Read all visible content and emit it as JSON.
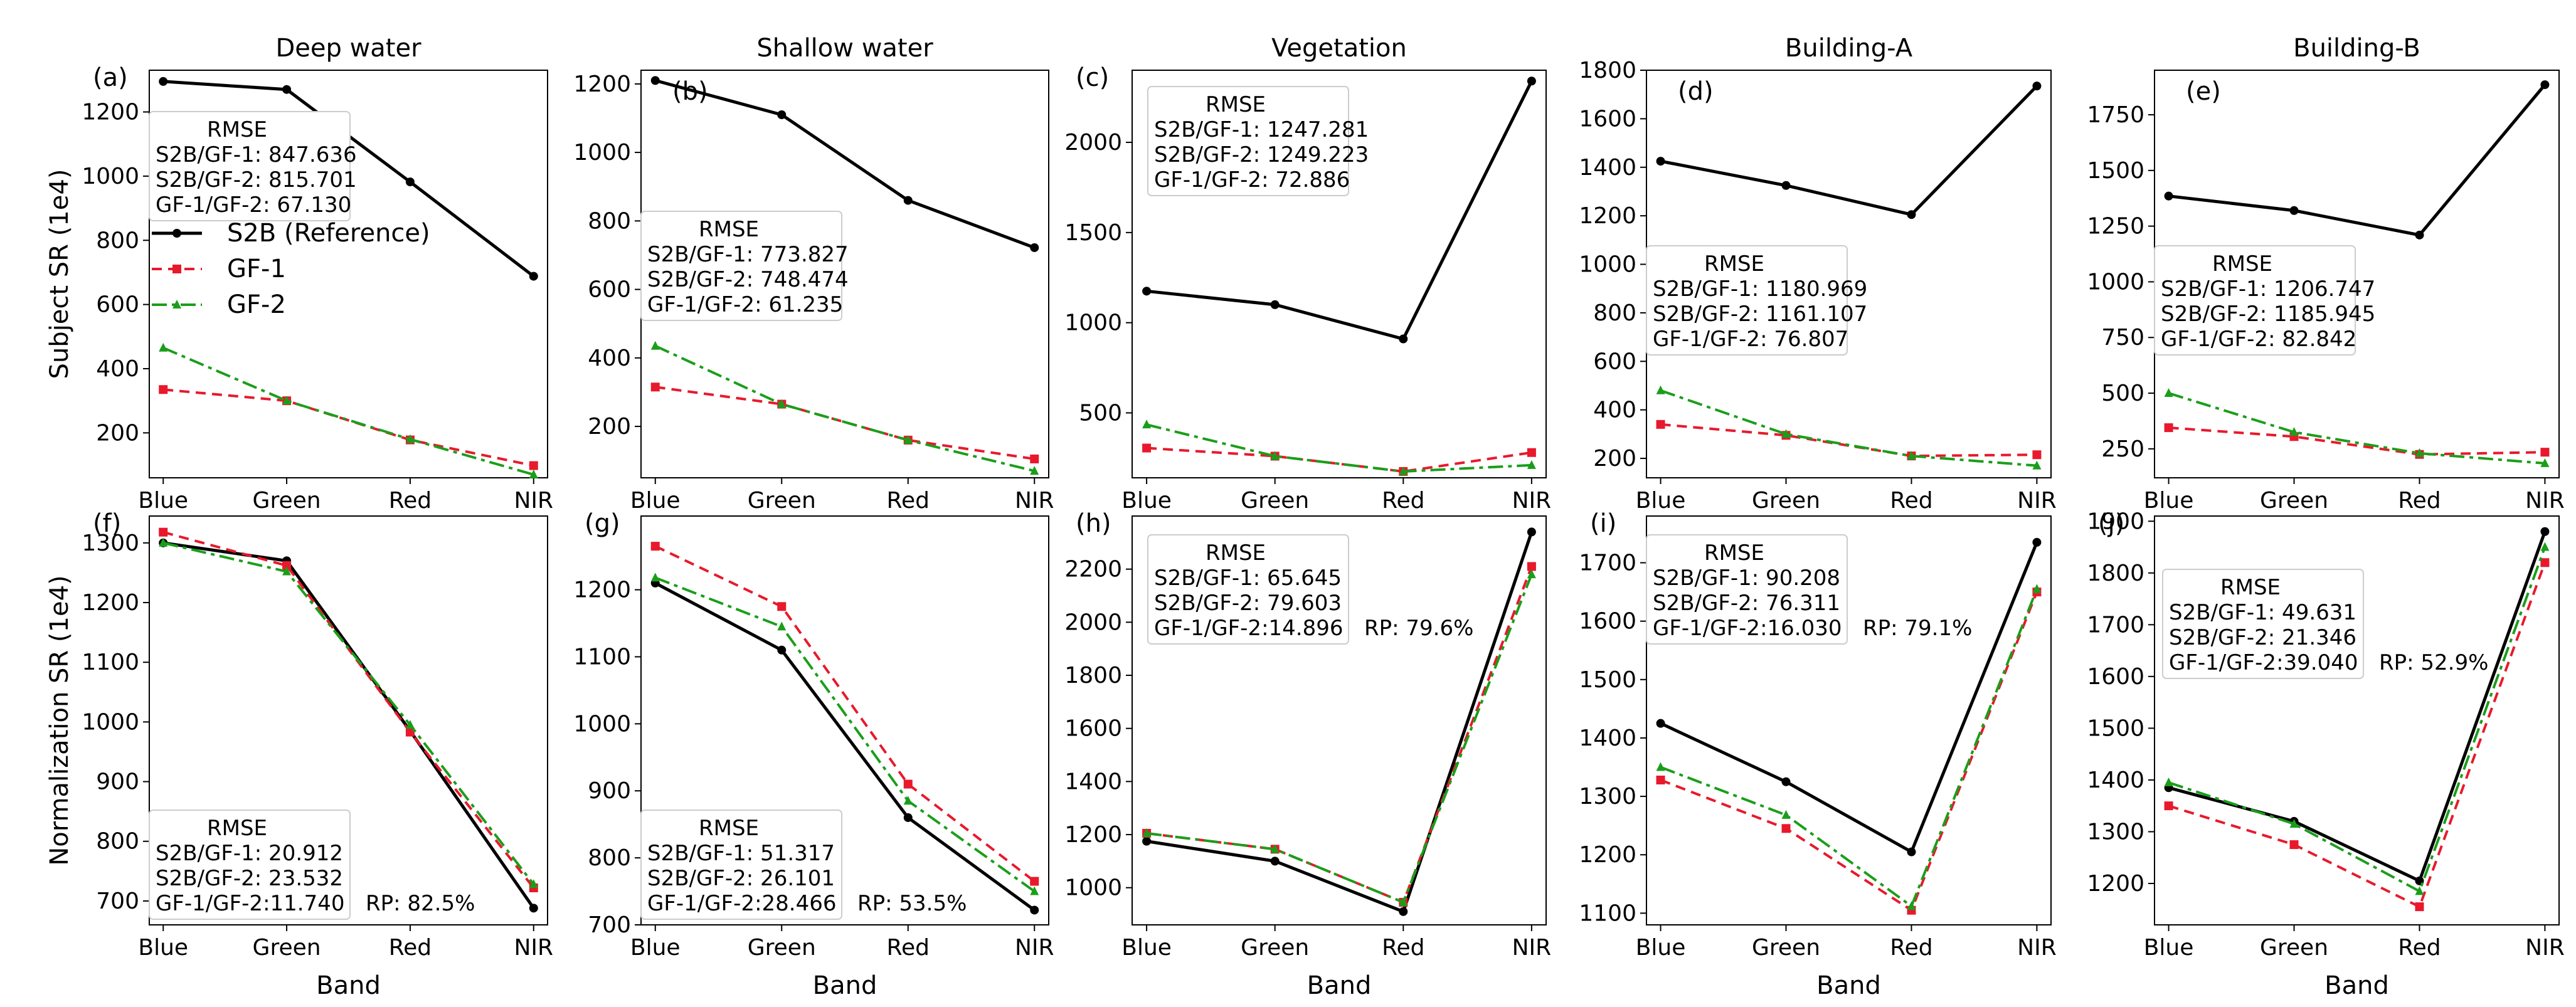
{
  "figure": {
    "col_titles": [
      "Deep water",
      "Shallow water",
      "Vegetation",
      "Building-A",
      "Building-B"
    ],
    "row_ylabels": [
      "Subject SR (1e4)",
      "Normalization SR (1e4)"
    ],
    "xlabel": "Band"
  },
  "legend": [
    {
      "name": "S2B (Reference)",
      "color": "#000000"
    },
    {
      "name": "GF-1",
      "color": "#e8192c"
    },
    {
      "name": "GF-2",
      "color": "#1a9e1a"
    }
  ],
  "colors": {
    "s2b": "#000000",
    "gf1": "#e8192c",
    "gf2": "#1a9e1a"
  },
  "chart_data": [
    {
      "id": "a",
      "label": "(a)",
      "type": "line",
      "categories": [
        "Blue",
        "Green",
        "Red",
        "NIR"
      ],
      "ylim": [
        60,
        1330
      ],
      "yticks": [
        200,
        400,
        600,
        800,
        1000,
        1200
      ],
      "series": [
        {
          "name": "S2B (Reference)",
          "values": [
            1295,
            1270,
            982,
            688
          ]
        },
        {
          "name": "GF-1",
          "values": [
            335,
            300,
            178,
            98
          ]
        },
        {
          "name": "GF-2",
          "values": [
            465,
            300,
            180,
            70
          ]
        }
      ],
      "rmse_title": "RMSE",
      "rmse_lines": [
        "S2B/GF-1: 847.636",
        "S2B/GF-2: 815.701",
        "GF-1/GF-2:  67.130"
      ],
      "rp": ""
    },
    {
      "id": "b",
      "label": "(b)",
      "type": "line",
      "categories": [
        "Blue",
        "Green",
        "Red",
        "NIR"
      ],
      "ylim": [
        50,
        1240
      ],
      "yticks": [
        200,
        400,
        600,
        800,
        1000,
        1200
      ],
      "series": [
        {
          "name": "S2B (Reference)",
          "values": [
            1210,
            1110,
            860,
            722
          ]
        },
        {
          "name": "GF-1",
          "values": [
            315,
            265,
            160,
            105
          ]
        },
        {
          "name": "GF-2",
          "values": [
            435,
            265,
            160,
            70
          ]
        }
      ],
      "rmse_title": "RMSE",
      "rmse_lines": [
        "S2B/GF-1: 773.827",
        "S2B/GF-2: 748.474",
        "GF-1/GF-2:  61.235"
      ],
      "rp": ""
    },
    {
      "id": "c",
      "label": "(c)",
      "type": "line",
      "categories": [
        "Blue",
        "Green",
        "Red",
        "NIR"
      ],
      "ylim": [
        140,
        2400
      ],
      "yticks": [
        500,
        1000,
        1500,
        2000
      ],
      "series": [
        {
          "name": "S2B (Reference)",
          "values": [
            1175,
            1100,
            910,
            2340
          ]
        },
        {
          "name": "GF-1",
          "values": [
            305,
            260,
            175,
            280
          ]
        },
        {
          "name": "GF-2",
          "values": [
            435,
            260,
            175,
            210
          ]
        }
      ],
      "rmse_title": "RMSE",
      "rmse_lines": [
        "S2B/GF-1: 1247.281",
        "S2B/GF-2: 1249.223",
        "GF-1/GF-2:    72.886"
      ],
      "rp": ""
    },
    {
      "id": "d",
      "label": "(d)",
      "type": "line",
      "categories": [
        "Blue",
        "Green",
        "Red",
        "NIR"
      ],
      "ylim": [
        120,
        1800
      ],
      "yticks": [
        200,
        400,
        600,
        800,
        1000,
        1200,
        1400,
        1600,
        1800
      ],
      "series": [
        {
          "name": "S2B (Reference)",
          "values": [
            1425,
            1325,
            1205,
            1735
          ]
        },
        {
          "name": "GF-1",
          "values": [
            340,
            295,
            210,
            215
          ]
        },
        {
          "name": "GF-2",
          "values": [
            480,
            300,
            210,
            170
          ]
        }
      ],
      "rmse_title": "RMSE",
      "rmse_lines": [
        "S2B/GF-1: 1180.969",
        "S2B/GF-2: 1161.107",
        "GF-1/GF-2:    76.807"
      ],
      "rp": ""
    },
    {
      "id": "e",
      "label": "(e)",
      "type": "line",
      "categories": [
        "Blue",
        "Green",
        "Red",
        "NIR"
      ],
      "ylim": [
        120,
        1950
      ],
      "yticks": [
        250,
        500,
        750,
        1000,
        1250,
        1500,
        1750
      ],
      "series": [
        {
          "name": "S2B (Reference)",
          "values": [
            1385,
            1320,
            1210,
            1885
          ]
        },
        {
          "name": "GF-1",
          "values": [
            345,
            305,
            225,
            235
          ]
        },
        {
          "name": "GF-2",
          "values": [
            500,
            325,
            230,
            185
          ]
        }
      ],
      "rmse_title": "RMSE",
      "rmse_lines": [
        "S2B/GF-1: 1206.747",
        "S2B/GF-2: 1185.945",
        "GF-1/GF-2:    82.842"
      ],
      "rp": ""
    },
    {
      "id": "f",
      "label": "(f)",
      "type": "line",
      "categories": [
        "Blue",
        "Green",
        "Red",
        "NIR"
      ],
      "ylim": [
        660,
        1345
      ],
      "yticks": [
        700,
        800,
        900,
        1000,
        1100,
        1200,
        1300
      ],
      "series": [
        {
          "name": "S2B (Reference)",
          "values": [
            1300,
            1270,
            985,
            688
          ]
        },
        {
          "name": "GF-1",
          "values": [
            1318,
            1262,
            983,
            722
          ]
        },
        {
          "name": "GF-2",
          "values": [
            1300,
            1252,
            995,
            728
          ]
        }
      ],
      "rmse_title": "RMSE",
      "rmse_lines": [
        "S2B/GF-1: 20.912",
        "S2B/GF-2: 23.532",
        "GF-1/GF-2:11.740"
      ],
      "rp": "RP: 82.5%"
    },
    {
      "id": "g",
      "label": "(g)",
      "type": "line",
      "categories": [
        "Blue",
        "Green",
        "Red",
        "NIR"
      ],
      "ylim": [
        700,
        1310
      ],
      "yticks": [
        700,
        800,
        900,
        1000,
        1100,
        1200
      ],
      "series": [
        {
          "name": "S2B (Reference)",
          "values": [
            1210,
            1110,
            860,
            722
          ]
        },
        {
          "name": "GF-1",
          "values": [
            1265,
            1175,
            910,
            765
          ]
        },
        {
          "name": "GF-2",
          "values": [
            1218,
            1145,
            885,
            750
          ]
        }
      ],
      "rmse_title": "RMSE",
      "rmse_lines": [
        "S2B/GF-1: 51.317",
        "S2B/GF-2: 26.101",
        "GF-1/GF-2:28.466"
      ],
      "rp": "RP: 53.5%"
    },
    {
      "id": "h",
      "label": "(h)",
      "type": "line",
      "categories": [
        "Blue",
        "Green",
        "Red",
        "NIR"
      ],
      "ylim": [
        860,
        2400
      ],
      "yticks": [
        1000,
        1200,
        1400,
        1600,
        1800,
        2000,
        2200
      ],
      "series": [
        {
          "name": "S2B (Reference)",
          "values": [
            1175,
            1100,
            910,
            2340
          ]
        },
        {
          "name": "GF-1",
          "values": [
            1205,
            1145,
            945,
            2210
          ]
        },
        {
          "name": "GF-2",
          "values": [
            1205,
            1145,
            945,
            2180
          ]
        }
      ],
      "rmse_title": "RMSE",
      "rmse_lines": [
        "S2B/GF-1: 65.645",
        "S2B/GF-2: 79.603",
        "GF-1/GF-2:14.896"
      ],
      "rp": "RP: 79.6%"
    },
    {
      "id": "i",
      "label": "(i)",
      "type": "line",
      "categories": [
        "Blue",
        "Green",
        "Red",
        "NIR"
      ],
      "ylim": [
        1080,
        1780
      ],
      "yticks": [
        1100,
        1200,
        1300,
        1400,
        1500,
        1600,
        1700
      ],
      "series": [
        {
          "name": "S2B (Reference)",
          "values": [
            1425,
            1325,
            1205,
            1735
          ]
        },
        {
          "name": "GF-1",
          "values": [
            1328,
            1245,
            1105,
            1650
          ]
        },
        {
          "name": "GF-2",
          "values": [
            1350,
            1268,
            1112,
            1655
          ]
        }
      ],
      "rmse_title": "RMSE",
      "rmse_lines": [
        "S2B/GF-1: 90.208",
        "S2B/GF-2: 76.311",
        "GF-1/GF-2:16.030"
      ],
      "rp": "RP: 79.1%"
    },
    {
      "id": "j",
      "label": "(j)",
      "type": "line",
      "categories": [
        "Blue",
        "Green",
        "Red",
        "NIR"
      ],
      "ylim": [
        1120,
        1910
      ],
      "yticks": [
        1200,
        1300,
        1400,
        1500,
        1600,
        1700,
        1800,
        1900
      ],
      "series": [
        {
          "name": "S2B (Reference)",
          "values": [
            1385,
            1320,
            1205,
            1880
          ]
        },
        {
          "name": "GF-1",
          "values": [
            1350,
            1275,
            1155,
            1820
          ]
        },
        {
          "name": "GF-2",
          "values": [
            1395,
            1315,
            1185,
            1850
          ]
        }
      ],
      "rmse_title": "RMSE",
      "rmse_lines": [
        "S2B/GF-1: 49.631",
        "S2B/GF-2: 21.346",
        "GF-1/GF-2:39.040"
      ],
      "rp": "RP: 52.9%"
    }
  ]
}
